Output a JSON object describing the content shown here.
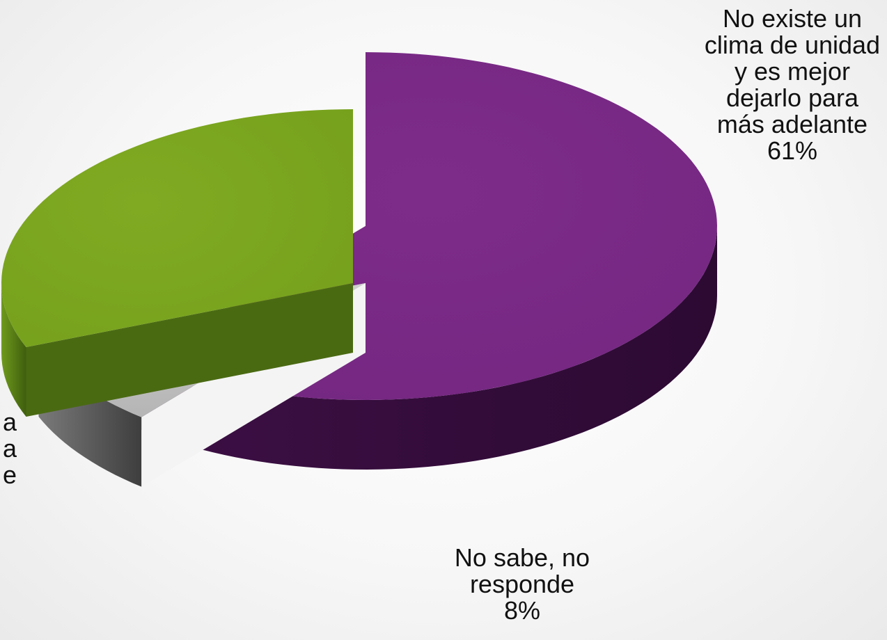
{
  "chart_data": {
    "type": "pie",
    "style": "3d-exploded",
    "slices": [
      {
        "label": "No existe un clima de unidad y es mejor dejarlo para más adelante",
        "value_label": "61%",
        "value": 61,
        "color": "#7a2a85"
      },
      {
        "label": "",
        "value_label": "",
        "value": 31,
        "color": "#7ea821"
      },
      {
        "label": "No sabe, no responde",
        "value_label": "8%",
        "value": 8,
        "color": "#bdbdbd"
      }
    ],
    "partial_label_fragments": [
      "a",
      "a",
      "e"
    ]
  }
}
